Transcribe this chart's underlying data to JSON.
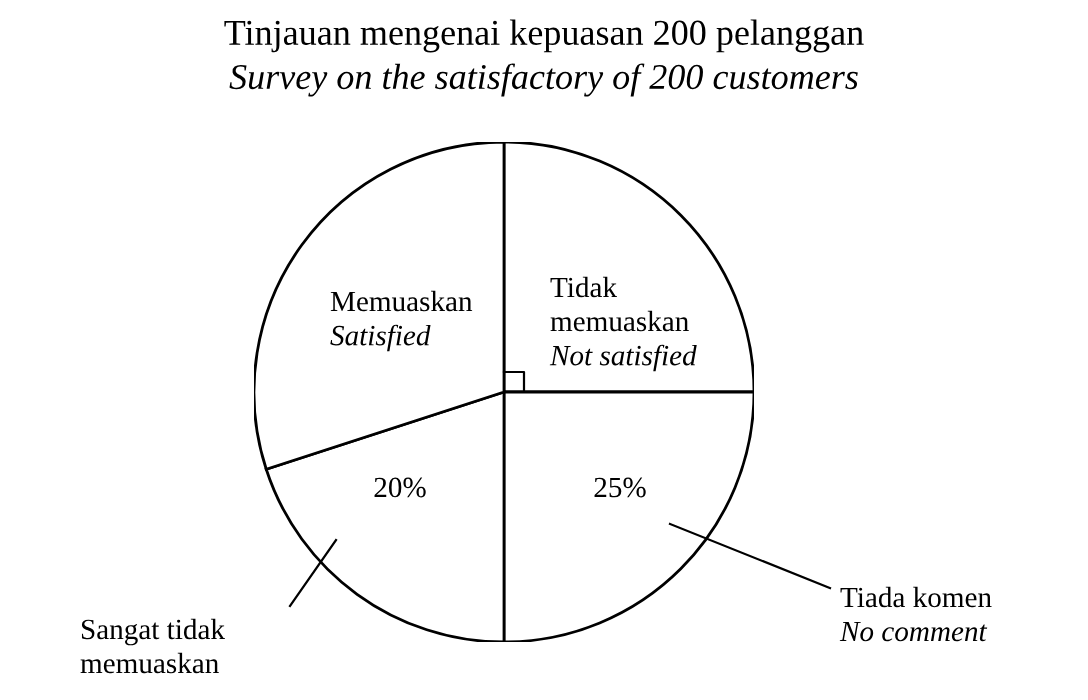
{
  "chart_data": {
    "type": "pie",
    "title": "Tinjauan mengenai kepuasan 200 pelanggan",
    "subtitle": "Survey on the satisfactory of 200 customers",
    "categories": [
      "Tidak\nmemuaskan\nNot satisfied",
      "Tiada komen\nNo comment",
      "Sangat tidak\nmemuaskan",
      "Memuaskan\nSatisfied"
    ],
    "values": [
      25,
      25,
      20,
      30
    ],
    "colors": [
      "#ffffff",
      "#ffffff",
      "#ffffff",
      "#ffffff"
    ],
    "value_labels": [
      null,
      "25%",
      "20%",
      null
    ]
  }
}
